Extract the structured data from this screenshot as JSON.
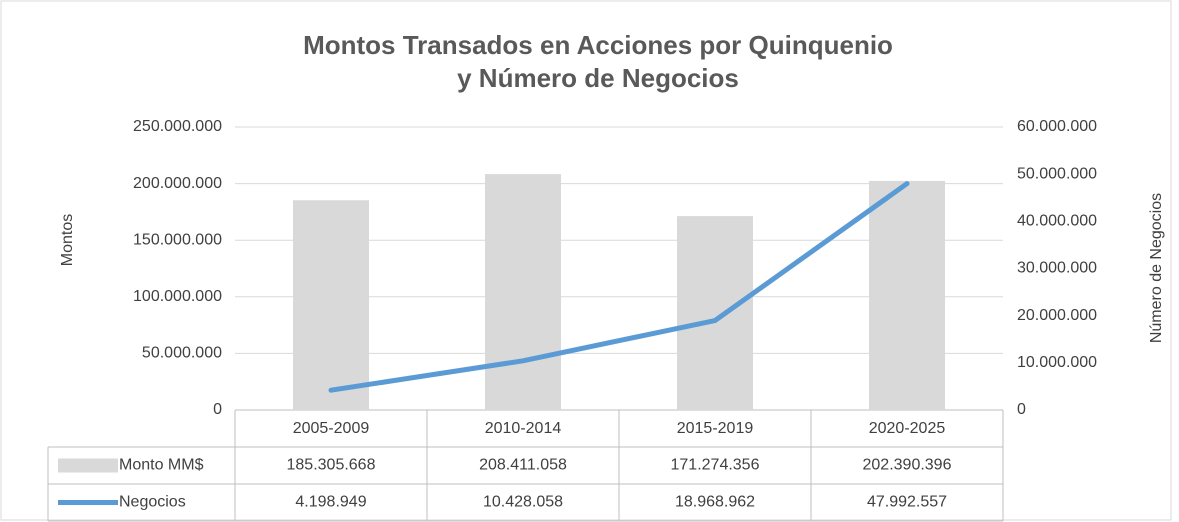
{
  "chart_data": {
    "type": "bar",
    "title": [
      "Montos Transados en Acciones por Quinquenio",
      "y Número de Negocios"
    ],
    "ylabel": "Montos",
    "y2label": "Número de Negocios",
    "categories": [
      "2005-2009",
      "2010-2014",
      "2015-2019",
      "2020-2025"
    ],
    "series": [
      {
        "name": "Monto MM$",
        "type": "bar",
        "color": "#d9d9d9",
        "values": [
          185305668,
          208411058,
          171274356,
          202390396
        ],
        "value_labels": [
          "185.305.668",
          "208.411.058",
          "171.274.356",
          "202.390.396"
        ]
      },
      {
        "name": "Negocios",
        "type": "line",
        "axis": "y2",
        "color": "#5b9bd5",
        "values": [
          4198949,
          10428058,
          18968962,
          47992557
        ],
        "value_labels": [
          "4.198.949",
          "10.428.058",
          "18.968.962",
          "47.992.557"
        ]
      }
    ],
    "ylim": [
      0,
      250000000
    ],
    "yticks": [
      0,
      {
        "value": 50000000,
        "label": "50.000.000"
      },
      {
        "value": 100000000,
        "label": "100.000.000"
      },
      {
        "value": 150000000,
        "label": "150.000.000"
      },
      {
        "value": 200000000,
        "label": "200.000.000"
      },
      {
        "value": 250000000,
        "label": "250.000.000"
      }
    ],
    "y2lim": [
      0,
      60000000
    ],
    "y2ticks": [
      0,
      {
        "value": 10000000,
        "label": "10.000.000"
      },
      {
        "value": 20000000,
        "label": "20.000.000"
      },
      {
        "value": 30000000,
        "label": "30.000.000"
      },
      {
        "value": 40000000,
        "label": "40.000.000"
      },
      {
        "value": 50000000,
        "label": "50.000.000"
      },
      {
        "value": 60000000,
        "label": "60.000.000"
      }
    ],
    "grid": true
  }
}
